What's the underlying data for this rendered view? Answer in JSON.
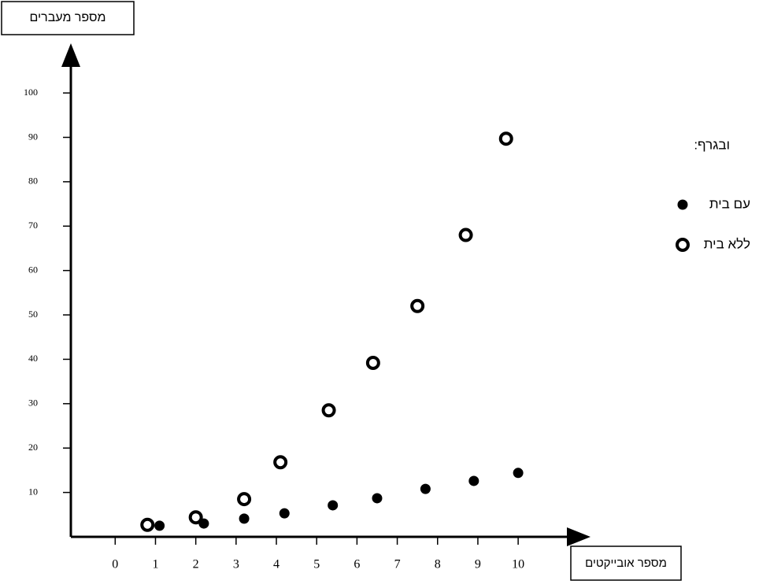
{
  "chart_data": {
    "type": "scatter",
    "y_label": "מספר מעברים",
    "x_label": "מספר אובייקטים",
    "legend_title": "ובגרף:",
    "xlim": [
      -1.1,
      11.6
    ],
    "xticks": [
      0,
      1,
      2,
      3,
      4,
      5,
      6,
      7,
      8,
      9,
      10
    ],
    "ylim": [
      0,
      108
    ],
    "yticks": [
      10,
      20,
      30,
      40,
      50,
      60,
      70,
      80,
      90,
      100
    ],
    "legend": "right",
    "series": [
      {
        "name": "עם בית",
        "color": "#000000",
        "marker": "filled",
        "x": [
          1.1,
          2.2,
          3.2,
          4.2,
          5.4,
          6.5,
          7.7,
          8.9,
          10.0
        ],
        "values": [
          2.5,
          3.0,
          4.1,
          5.3,
          7.1,
          8.7,
          10.8,
          12.6,
          14.4
        ]
      },
      {
        "name": "ללא בית",
        "color": "#000000",
        "marker": "hollow",
        "x": [
          0.8,
          2.0,
          3.2,
          4.1,
          5.3,
          6.4,
          7.5,
          8.7,
          9.7
        ],
        "values": [
          2.7,
          4.4,
          8.5,
          16.8,
          28.5,
          39.2,
          52,
          68,
          89.7
        ]
      }
    ]
  }
}
